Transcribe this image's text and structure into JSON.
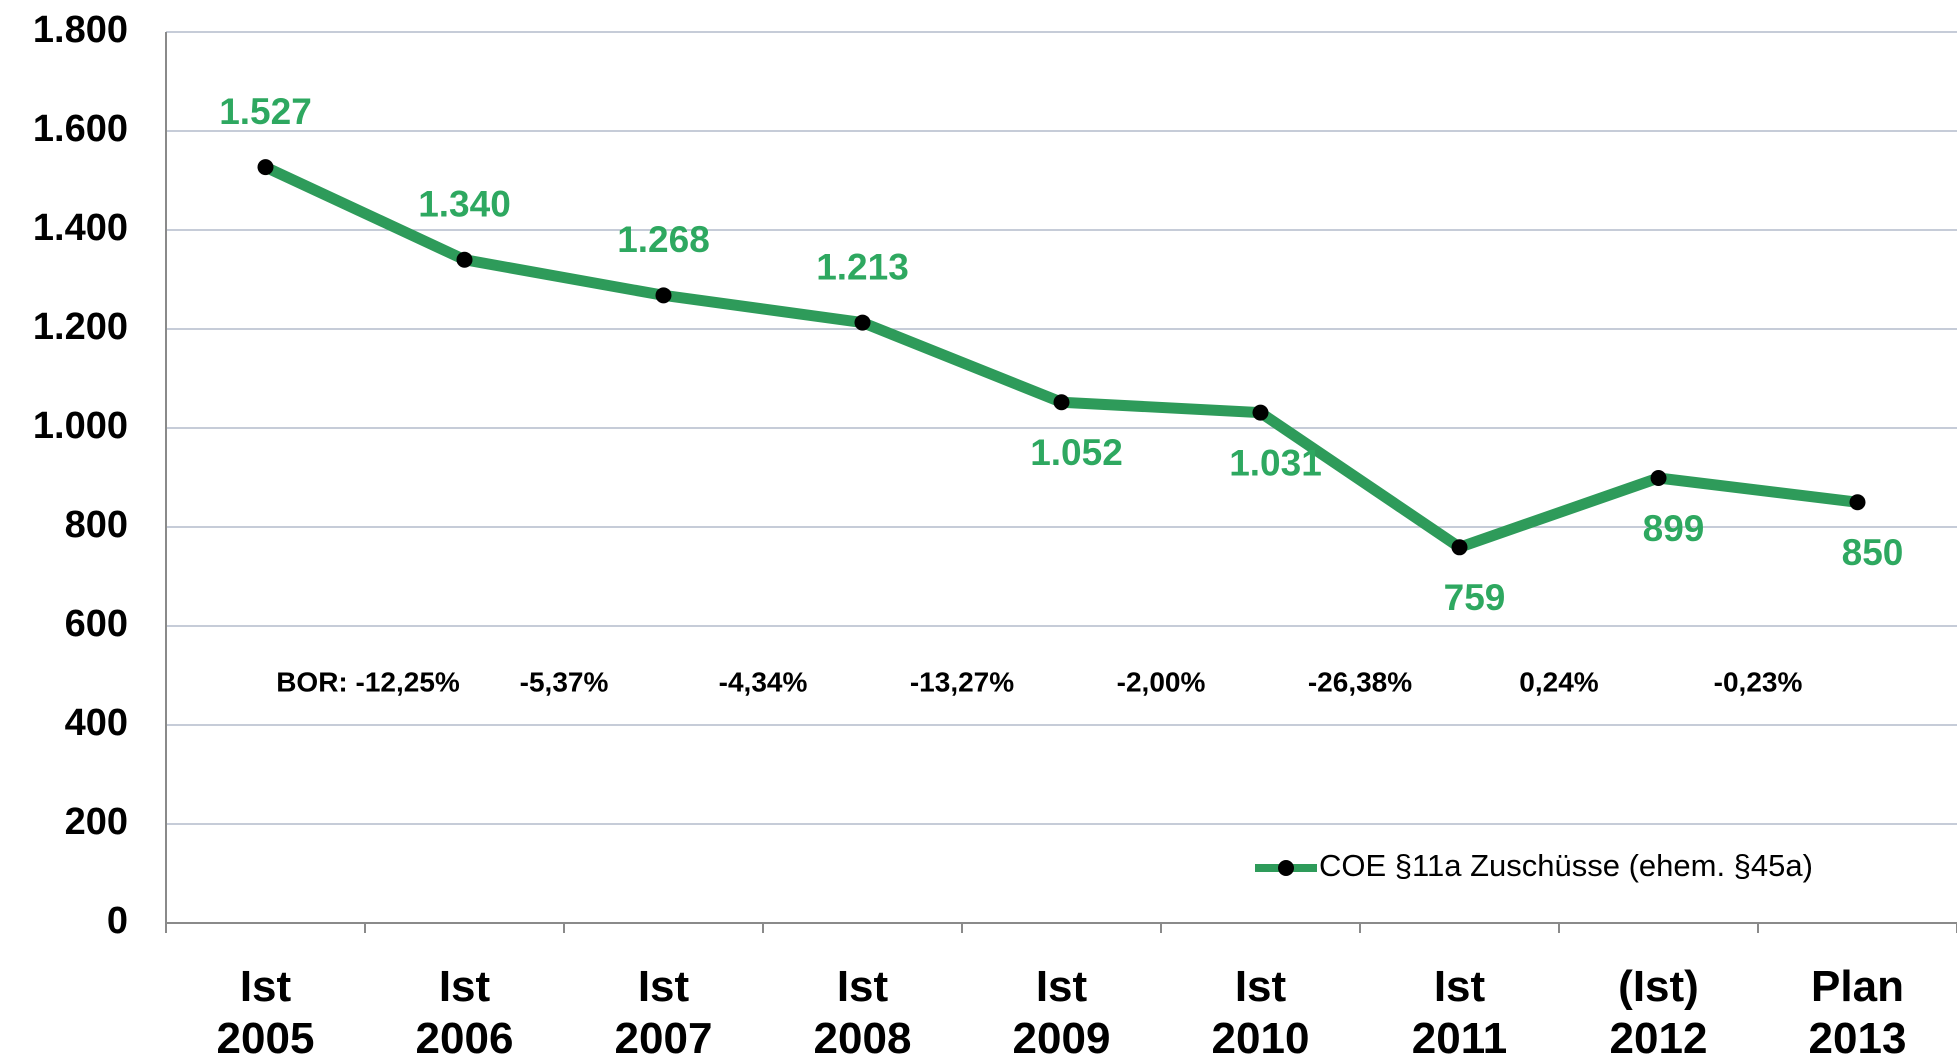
{
  "chart_data": {
    "type": "line",
    "categories": [
      "Ist 2005",
      "Ist 2006",
      "Ist 2007",
      "Ist 2008",
      "Ist 2009",
      "Ist 2010",
      "Ist 2011",
      "(Ist) 2012",
      "Plan 2013"
    ],
    "series": [
      {
        "name": "COE §11a Zuschüsse (ehem. §45a)",
        "color": "#2e9b5a",
        "values": [
          1527,
          1340,
          1268,
          1213,
          1052,
          1031,
          759,
          899,
          850
        ],
        "value_labels": [
          "1.527",
          "1.340",
          "1.268",
          "1.213",
          "1.052",
          "1.031",
          "759",
          "899",
          "850"
        ]
      }
    ],
    "annotations": [
      "BOR: -12,25%",
      "-5,37%",
      "-4,34%",
      "-13,27%",
      "-2,00%",
      "-26,38%",
      "0,24%",
      "-0,23%"
    ],
    "ylim": [
      0,
      1800
    ],
    "yticks": [
      0,
      200,
      400,
      600,
      800,
      {
        "value": 1000,
        "label": "1.000"
      },
      {
        "value": 1200,
        "label": "1.200"
      },
      {
        "value": 1400,
        "label": "1.400"
      },
      {
        "value": 1600,
        "label": "1.600"
      },
      {
        "value": 1800,
        "label": "1.800"
      }
    ],
    "grid": true,
    "legend": "lower right"
  }
}
